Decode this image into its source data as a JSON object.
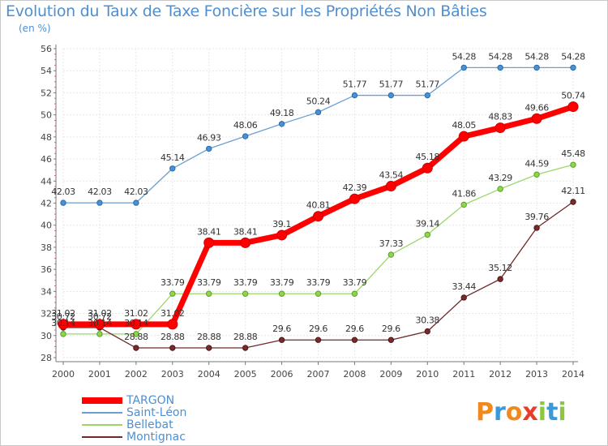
{
  "title": "Evolution du Taux de Taxe Foncière sur les Propriétés Non Bâties",
  "subtitle": "(en %)",
  "logo": {
    "letters": [
      "P",
      "r",
      "o",
      "x",
      "i",
      "t",
      "i"
    ],
    "colors": [
      "#f08a1e",
      "#3a9ad9",
      "#f08a1e",
      "#e83c2c",
      "#8dc63f",
      "#3a9ad9",
      "#8dc63f"
    ]
  },
  "colors": {
    "TARGON": "#ff0000",
    "Saint-Léon": "#6a9fd4",
    "Bellebat": "#9bd66a",
    "Montignac": "#6e2a2a",
    "title": "#4f8fd0"
  },
  "chart_data": {
    "type": "line",
    "x": [
      "2000",
      "2001",
      "2002",
      "2003",
      "2004",
      "2005",
      "2006",
      "2007",
      "2008",
      "2009",
      "2010",
      "2011",
      "2012",
      "2013",
      "2014"
    ],
    "ylim": [
      28,
      56
    ],
    "yticks": [
      28,
      30,
      32,
      34,
      36,
      38,
      40,
      42,
      44,
      46,
      48,
      50,
      52,
      54,
      56
    ],
    "grid": true,
    "legend_position": "bottom-left",
    "series": [
      {
        "name": "Saint-Léon",
        "values": [
          42.03,
          42.03,
          42.03,
          45.14,
          46.93,
          48.06,
          49.18,
          50.24,
          51.77,
          51.77,
          51.77,
          54.28,
          54.28,
          54.28,
          54.28
        ],
        "labels": [
          "42.03",
          "42.03",
          "42.03",
          "45.14",
          "46.93",
          "48.06",
          "49.18",
          "50.24",
          "51.77",
          "51.77",
          "51.77",
          "54.28",
          "54.28",
          "54.28",
          "54.28"
        ]
      },
      {
        "name": "Bellebat",
        "values": [
          30.14,
          30.14,
          30.14,
          33.79,
          33.79,
          33.79,
          33.79,
          33.79,
          33.79,
          37.33,
          39.14,
          41.86,
          43.29,
          44.59,
          45.48
        ],
        "labels": [
          "30.14",
          "30.14",
          "30.14",
          "33.79",
          "33.79",
          "33.79",
          "33.79",
          "33.79",
          "33.79",
          "37.33",
          "39.14",
          "41.86",
          "43.29",
          "44.59",
          "45.48"
        ]
      },
      {
        "name": "Montignac",
        "values": [
          30.72,
          30.72,
          28.88,
          28.88,
          28.88,
          28.88,
          29.6,
          29.6,
          29.6,
          29.6,
          30.38,
          33.44,
          35.12,
          39.76,
          42.11
        ],
        "labels": [
          "30.72",
          "30.72",
          "28.88",
          "28.88",
          "28.88",
          "28.88",
          "29.6",
          "29.6",
          "29.6",
          "29.6",
          "30.38",
          "33.44",
          "35.12",
          "39.76",
          "42.11"
        ]
      },
      {
        "name": "TARGON",
        "values": [
          31.02,
          31.02,
          31.02,
          31.02,
          38.41,
          38.41,
          39.1,
          40.81,
          42.39,
          43.54,
          45.18,
          48.05,
          48.83,
          49.66,
          50.74
        ],
        "labels": [
          "31.02",
          "31.02",
          "31.02",
          "31.02",
          "38.41",
          "38.41",
          "39.1",
          "40.81",
          "42.39",
          "43.54",
          "45.18",
          "48.05",
          "48.83",
          "49.66",
          "50.74"
        ]
      }
    ]
  }
}
